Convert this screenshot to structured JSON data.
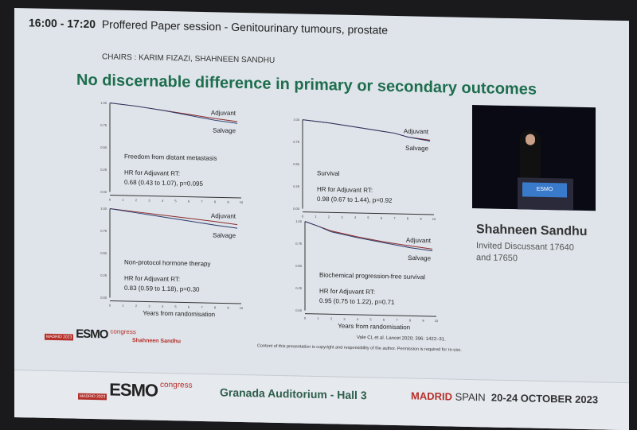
{
  "session": {
    "time": "16:00 - 17:20",
    "title": "Proffered Paper session - Genitourinary tumours, prostate",
    "chairs": "CHAIRS : KARIM FIZAZI, SHAHNEEN SANDHU"
  },
  "slide": {
    "title": "No discernable difference in primary or secondary outcomes",
    "author": "Shahneen Sandhu",
    "reference": "Vale CL et al. Lancet 2020; 396: 1422–31.",
    "copyright": "Content of this presentation is copyright and responsibility of the author. Permission is required for re-use."
  },
  "speaker": {
    "name": "Shahneen Sandhu",
    "role": "Invited Discussant 17640 and 17650",
    "podium_logo": "ESMO"
  },
  "logo": {
    "city": "MADRID 2023",
    "brand": "ESMO",
    "suffix": "congress"
  },
  "footer": {
    "venue": "Granada Auditorium - Hall 3",
    "city": "MADRID",
    "country": "SPAIN",
    "dates": "20-24 OCTOBER 2023"
  },
  "colors": {
    "title": "#1e6e4e",
    "adjuvant": "#8a2a2a",
    "salvage": "#2b3a6b",
    "brand": "#b5302a"
  },
  "chart_data": [
    {
      "type": "line",
      "title": "Freedom from distant metastasis",
      "hr_label": "HR for Adjuvant RT:",
      "hr": "0.68 (0.43 to 1.07), p=0.095",
      "xlim": [
        0,
        10
      ],
      "ylim": [
        0,
        1
      ],
      "xticks": [
        "0",
        "1",
        "2",
        "3",
        "4",
        "5",
        "6",
        "7",
        "8",
        "9",
        "10"
      ],
      "yticks": [
        "0.00",
        "0.25",
        "0.50",
        "0.75",
        "1.00"
      ],
      "xlabel": "",
      "series": [
        {
          "name": "Adjuvant",
          "x": [
            0,
            2,
            4,
            6,
            8,
            9.7
          ],
          "y": [
            1,
            0.97,
            0.93,
            0.89,
            0.85,
            0.82
          ]
        },
        {
          "name": "Salvage",
          "x": [
            0,
            2,
            4,
            6,
            8,
            9.7
          ],
          "y": [
            1,
            0.97,
            0.93,
            0.88,
            0.83,
            0.8
          ]
        }
      ]
    },
    {
      "type": "line",
      "title": "Survival",
      "hr_label": "HR for Adjuvant RT:",
      "hr": "0.98 (0.67 to 1.44), p=0.92",
      "xlim": [
        0,
        10
      ],
      "ylim": [
        0,
        1
      ],
      "xticks": [
        "0",
        "1",
        "2",
        "3",
        "4",
        "5",
        "6",
        "7",
        "8",
        "9",
        "10"
      ],
      "yticks": [
        "0.00",
        "0.25",
        "0.50",
        "0.75",
        "1.00"
      ],
      "xlabel": "",
      "series": [
        {
          "name": "Adjuvant",
          "x": [
            0,
            2,
            4,
            6,
            7,
            8,
            9.7
          ],
          "y": [
            1,
            0.97,
            0.93,
            0.89,
            0.87,
            0.83,
            0.8
          ]
        },
        {
          "name": "Salvage",
          "x": [
            0,
            2,
            4,
            6,
            7,
            8,
            9.7
          ],
          "y": [
            1,
            0.97,
            0.93,
            0.89,
            0.87,
            0.83,
            0.79
          ]
        }
      ]
    },
    {
      "type": "line",
      "title": "Non-protocol hormone therapy",
      "hr_label": "HR for Adjuvant RT:",
      "hr": "0.83 (0.59 to 1.18), p=0.30",
      "xlim": [
        0,
        10
      ],
      "ylim": [
        0,
        1
      ],
      "xticks": [
        "0",
        "1",
        "2",
        "3",
        "4",
        "5",
        "6",
        "7",
        "8",
        "9",
        "10"
      ],
      "yticks": [
        "0.00",
        "0.25",
        "0.50",
        "0.75",
        "1.00"
      ],
      "xlabel": "Years from randomisation",
      "series": [
        {
          "name": "Adjuvant",
          "x": [
            0,
            2,
            4,
            6,
            8,
            9.7
          ],
          "y": [
            1,
            0.97,
            0.94,
            0.91,
            0.88,
            0.85
          ]
        },
        {
          "name": "Salvage",
          "x": [
            0,
            2,
            4,
            6,
            8,
            9.7
          ],
          "y": [
            1,
            0.96,
            0.92,
            0.88,
            0.84,
            0.81
          ]
        }
      ]
    },
    {
      "type": "line",
      "title": "Biochemical progression-free survival",
      "hr_label": "HR for Adjuvant RT:",
      "hr": "0.95 (0.75 to 1.22), p=0.71",
      "xlim": [
        0,
        10
      ],
      "ylim": [
        0,
        1
      ],
      "xticks": [
        "0",
        "1",
        "2",
        "3",
        "4",
        "5",
        "6",
        "7",
        "8",
        "9",
        "10"
      ],
      "yticks": [
        "0.00",
        "0.25",
        "0.50",
        "0.75",
        "1.00"
      ],
      "xlabel": "Years from randomisation",
      "series": [
        {
          "name": "Adjuvant",
          "x": [
            0,
            1,
            2,
            4,
            6,
            8,
            9.7
          ],
          "y": [
            1,
            0.95,
            0.9,
            0.84,
            0.79,
            0.75,
            0.72
          ]
        },
        {
          "name": "Salvage",
          "x": [
            0,
            1,
            2,
            4,
            6,
            8,
            9.7
          ],
          "y": [
            1,
            0.95,
            0.89,
            0.83,
            0.78,
            0.73,
            0.7
          ]
        }
      ]
    }
  ]
}
